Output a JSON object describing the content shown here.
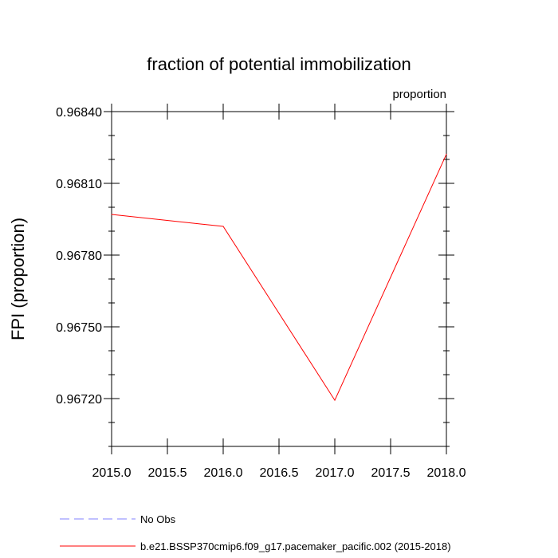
{
  "chart_data": {
    "type": "line",
    "title": "fraction of potential immobilization",
    "units_label": "proportion",
    "ylabel": "FPI  (proportion)",
    "xlabel": "",
    "xlim": [
      2015.0,
      2018.0
    ],
    "ylim": [
      0.967,
      0.9684
    ],
    "x_ticks": [
      2015.0,
      2015.5,
      2016.0,
      2016.5,
      2017.0,
      2017.5,
      2018.0
    ],
    "x_tick_labels": [
      "2015.0",
      "2015.5",
      "2016.0",
      "2016.5",
      "2017.0",
      "2017.5",
      "2018.0"
    ],
    "y_ticks": [
      0.9672,
      0.9675,
      0.9678,
      0.9681,
      0.9684
    ],
    "y_tick_labels": [
      "0.96720",
      "0.96750",
      "0.96780",
      "0.96810",
      "0.96840"
    ],
    "y_minor_step": 0.0001,
    "x_minor_step": 0.5,
    "grid": false,
    "legend_position": "bottom",
    "series": [
      {
        "name": "b.e21.BSSP370cmip6.f09_g17.pacemaker_pacific.002 (2015-2018)",
        "color": "#ff0000",
        "dash": "solid",
        "x": [
          2015.0,
          2016.0,
          2017.0,
          2018.0
        ],
        "values": [
          0.96797,
          0.96792,
          0.967193,
          0.968222
        ]
      }
    ],
    "legend": [
      {
        "label": "No Obs",
        "color": "#8080ff",
        "dash": "dashed"
      },
      {
        "label": "b.e21.BSSP370cmip6.f09_g17.pacemaker_pacific.002 (2015-2018)",
        "color": "#ff0000",
        "dash": "solid"
      }
    ]
  }
}
